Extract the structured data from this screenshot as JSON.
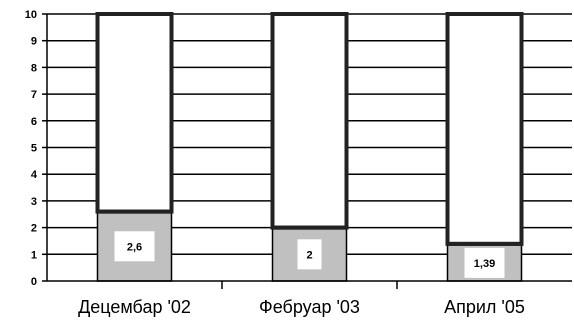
{
  "chart_data": {
    "type": "bar",
    "stacked": true,
    "categories": [
      "Децембар '02",
      "Фебруар '03",
      "Април '05"
    ],
    "series": [
      {
        "values": [
          2.6,
          2,
          1.39
        ],
        "color": "#c0c0c0"
      },
      {
        "values": [
          7.4,
          8,
          8.61
        ],
        "color": "#ffffff"
      }
    ],
    "data_labels": [
      "2,6",
      "2",
      "1,39"
    ],
    "y_ticks": [
      "0",
      "1",
      "2",
      "3",
      "4",
      "5",
      "6",
      "7",
      "8",
      "9",
      "10"
    ],
    "ylim": [
      0,
      10
    ],
    "grid": true,
    "title": "",
    "xlabel": "",
    "ylabel": ""
  }
}
